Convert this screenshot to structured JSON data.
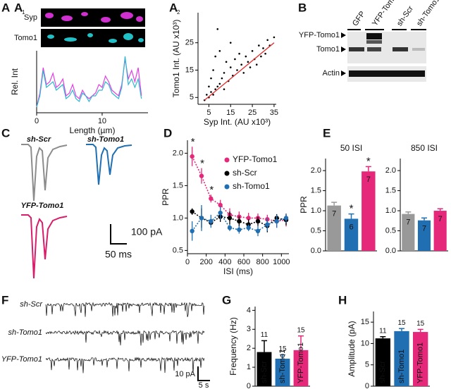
{
  "panel_labels": {
    "a": "A",
    "a1_sub": "1",
    "a2_sub": "2",
    "b": "B",
    "c": "C",
    "d": "D",
    "e": "E",
    "f": "F",
    "g": "G",
    "h": "H"
  },
  "a1_images": {
    "syp": "Syp",
    "tomo1": "Tomo1"
  },
  "blot": {
    "lanes": [
      "GFP",
      "YFP-Tomo1",
      "sh-Scr",
      "sh-Tomo1"
    ],
    "bands": [
      "YFP-Tomo1",
      "Tomo1",
      "Actin"
    ]
  },
  "traces_c": {
    "labels": [
      "sh-Scr",
      "sh-Tomo1",
      "YFP-Tomo1"
    ],
    "scale_y": "100 pA",
    "scale_x": "50 ms"
  },
  "traces_f": {
    "labels": [
      "sh-Scr",
      "sh-Tomo1",
      "YFP-Tomo1"
    ],
    "scale_y": "10 pA",
    "scale_x": "5 s"
  },
  "chart_data": [
    {
      "type": "line",
      "xlabel": "Length (µm)",
      "ylabel": "Rel. Int",
      "xlim": [
        0,
        17
      ],
      "ylim": [
        0,
        1.1
      ],
      "xticks": [
        0,
        10
      ],
      "x": [
        0,
        0.5,
        1,
        1.5,
        2,
        2.5,
        3,
        3.5,
        4,
        4.5,
        5,
        5.5,
        6,
        6.5,
        7,
        7.5,
        8,
        8.5,
        9,
        9.5,
        10,
        10.5,
        11,
        11.5,
        12,
        12.5,
        13,
        13.5,
        14,
        14.5,
        15,
        15.5,
        16
      ],
      "series": [
        {
          "color": "#e040e0",
          "values": [
            0.1,
            0.35,
            0.8,
            0.5,
            0.55,
            0.7,
            0.45,
            0.5,
            0.6,
            0.3,
            0.35,
            0.5,
            0.3,
            0.25,
            0.4,
            0.3,
            0.25,
            0.3,
            0.35,
            0.5,
            0.45,
            0.65,
            0.55,
            0.4,
            0.35,
            0.3,
            0.5,
            0.95,
            0.6,
            0.75,
            0.55,
            0.8,
            0.3
          ]
        },
        {
          "color": "#30b8d0",
          "values": [
            0.1,
            0.3,
            0.75,
            0.45,
            0.5,
            0.55,
            0.4,
            0.45,
            0.5,
            0.25,
            0.3,
            0.4,
            0.25,
            0.2,
            0.35,
            0.3,
            0.2,
            0.3,
            0.3,
            0.4,
            0.4,
            0.55,
            0.5,
            0.35,
            0.3,
            0.25,
            0.45,
            1.0,
            0.5,
            0.6,
            0.45,
            0.6,
            0.25
          ]
        }
      ]
    },
    {
      "type": "scatter",
      "xlabel": "Syp Int. (AU x10³)",
      "ylabel": "Tomo1 Int. (AU x10³)",
      "xlim": [
        0,
        36
      ],
      "ylim": [
        2.5,
        36
      ],
      "xticks": [
        5,
        15,
        25,
        35
      ],
      "yticks": [
        5,
        15,
        25
      ],
      "color": "#000000",
      "x": [
        3,
        4,
        5,
        5,
        6,
        6,
        7,
        7,
        8,
        8,
        9,
        9,
        10,
        10,
        11,
        12,
        12,
        13,
        14,
        15,
        15,
        16,
        17,
        18,
        19,
        20,
        21,
        22,
        23,
        24,
        25,
        26,
        27,
        28,
        29,
        30,
        31,
        32,
        33,
        35
      ],
      "values": [
        4,
        6,
        5,
        9,
        7,
        12,
        6,
        15,
        8,
        20,
        9,
        30,
        10,
        22,
        12,
        14,
        8,
        18,
        11,
        16,
        25,
        13,
        19,
        15,
        21,
        17,
        14,
        20,
        18,
        16,
        22,
        19,
        17,
        24,
        20,
        23,
        21,
        26,
        24,
        27
      ],
      "fit": {
        "color": "#e03030",
        "x": [
          3,
          35
        ],
        "y": [
          4,
          25
        ]
      }
    },
    {
      "type": "line",
      "markers": true,
      "xlabel": "ISI (ms)",
      "ylabel": "PPR",
      "xlim": [
        0,
        1080
      ],
      "ylim": [
        0.45,
        2.2
      ],
      "xticks": [
        0,
        200,
        400,
        600,
        800,
        1000
      ],
      "yticks": [
        {
          "value": 0.5,
          "label": "0.5"
        },
        {
          "value": 1,
          "label": "1.0"
        },
        {
          "value": 1.5,
          "label": "1.5"
        },
        {
          "value": 2,
          "label": "2.0"
        }
      ],
      "x": [
        50,
        150,
        250,
        350,
        450,
        550,
        650,
        750,
        850,
        950,
        1050
      ],
      "series": [
        {
          "name": "YFP-Tomo1",
          "color": "#e6287a",
          "values": [
            1.95,
            1.65,
            1.3,
            1.2,
            1.05,
            1.02,
            1.0,
            1.0,
            0.98,
            0.95,
            0.97
          ],
          "errors": [
            0.15,
            0.12,
            0.06,
            0.08,
            0.1,
            0.08,
            0.08,
            0.07,
            0.07,
            0.1,
            0.1
          ],
          "annotations": [
            "*",
            "*",
            "*",
            null,
            null,
            null,
            null,
            null,
            null,
            null,
            null
          ]
        },
        {
          "name": "sh-Scr",
          "color": "#000000",
          "values": [
            1.1,
            1.0,
            0.93,
            1.02,
            1.0,
            0.95,
            0.9,
            0.95,
            0.88,
            1.0,
            0.97
          ],
          "errors": [
            0.05,
            0.15,
            0.05,
            0.08,
            0.1,
            0.08,
            0.08,
            0.07,
            0.1,
            0.06,
            0.08
          ]
        },
        {
          "name": "sh-Tomo1",
          "color": "#1f6fb2",
          "values": [
            0.8,
            1.0,
            0.95,
            1.08,
            0.85,
            0.82,
            0.85,
            0.8,
            0.9,
            0.95,
            1.0
          ],
          "errors": [
            0.15,
            0.2,
            0.1,
            0.1,
            0.05,
            0.06,
            0.05,
            0.08,
            0.1,
            0.1,
            0.07
          ]
        }
      ]
    },
    {
      "type": "bar",
      "title": "50 ISI",
      "ylabel": "PPR",
      "n_inside": true,
      "ylim": [
        0,
        2.3
      ],
      "yticks": [
        {
          "value": 0,
          "label": "0.0"
        },
        {
          "value": 0.5,
          "label": "0.5"
        },
        {
          "value": 1,
          "label": "1.0"
        },
        {
          "value": 1.5,
          "label": "1.5"
        },
        {
          "value": 2,
          "label": "2.0"
        }
      ],
      "categories": [
        null,
        null,
        null
      ],
      "colors": [
        "#999999",
        "#1f6fb2",
        "#e6287a"
      ],
      "values": [
        1.13,
        0.8,
        1.98
      ],
      "errors": [
        0.08,
        0.12,
        0.12
      ],
      "n": [
        7,
        6,
        7
      ],
      "annotations": [
        null,
        "*",
        "*"
      ]
    },
    {
      "type": "bar",
      "title": "850 ISI",
      "n_inside": true,
      "ylim": [
        0,
        2.3
      ],
      "yticks": [
        {
          "value": 0,
          "label": "0.0"
        },
        {
          "value": 0.5,
          "label": "0.5"
        },
        {
          "value": 1,
          "label": "1.0"
        },
        {
          "value": 1.5,
          "label": "1.5"
        },
        {
          "value": 2,
          "label": "2.0"
        }
      ],
      "categories": [
        null,
        null,
        null
      ],
      "colors": [
        "#999999",
        "#1f6fb2",
        "#e6287a"
      ],
      "values": [
        0.92,
        0.76,
        1.0
      ],
      "errors": [
        0.05,
        0.06,
        0.05
      ],
      "n": [
        7,
        7,
        7
      ]
    },
    {
      "type": "bar",
      "ylabel": "Frequency (Hz)",
      "ylim": [
        0,
        4.2
      ],
      "yticks": [
        0,
        1,
        2,
        3,
        4
      ],
      "categories": [
        "sh-Scr",
        "sh-Tomo1",
        "YFP-Tomo1"
      ],
      "colors": [
        "#000000",
        "#1f6fb2",
        "#e6287a"
      ],
      "values": [
        1.8,
        1.45,
        1.9
      ],
      "errors": [
        0.6,
        0.2,
        0.75
      ],
      "n": [
        11,
        15,
        15
      ]
    },
    {
      "type": "bar",
      "ylabel": "Amplitude (pA)",
      "ylim": [
        0,
        17.5
      ],
      "yticks": [
        0,
        5,
        10,
        15
      ],
      "categories": [
        "sh-Scr",
        "sh-Tomo1",
        "YFP-Tomo1"
      ],
      "colors": [
        "#000000",
        "#1f6fb2",
        "#e6287a"
      ],
      "values": [
        11.2,
        12.9,
        12.7
      ],
      "errors": [
        0.4,
        0.6,
        0.6
      ],
      "n": [
        11,
        15,
        15
      ]
    }
  ]
}
